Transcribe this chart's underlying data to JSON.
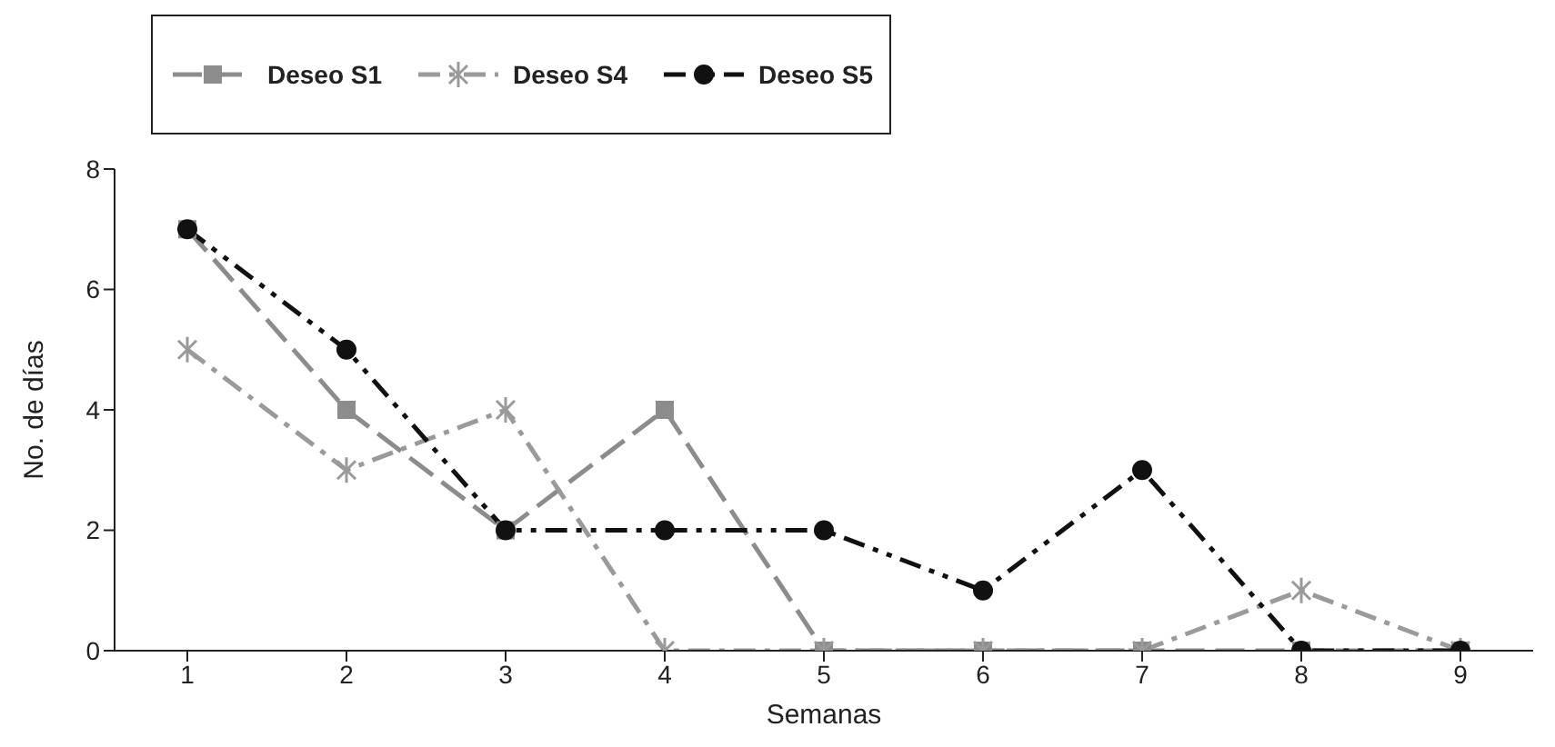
{
  "chart_data": {
    "type": "line",
    "xlabel": "Semanas",
    "ylabel": "No. de días",
    "categories": [
      "1",
      "2",
      "3",
      "4",
      "5",
      "6",
      "7",
      "8",
      "9"
    ],
    "series": [
      {
        "name": "Deseo S1",
        "color": "#8c8c8c",
        "marker": "square",
        "values": [
          7,
          4,
          2,
          4,
          0,
          0,
          0,
          0,
          0
        ]
      },
      {
        "name": "Deseo S4",
        "color": "#9a9a9a",
        "marker": "cross",
        "values": [
          5,
          3,
          4,
          0,
          0,
          0,
          0,
          1,
          0
        ]
      },
      {
        "name": "Deseo S5",
        "color": "#111111",
        "marker": "circle",
        "values": [
          7,
          5,
          2,
          2,
          2,
          1,
          3,
          0,
          0
        ]
      }
    ],
    "ylim": [
      0,
      8
    ],
    "yticks": [
      0,
      2,
      4,
      6,
      8
    ],
    "grid": false,
    "legend": "top",
    "line_style": "dashed"
  }
}
